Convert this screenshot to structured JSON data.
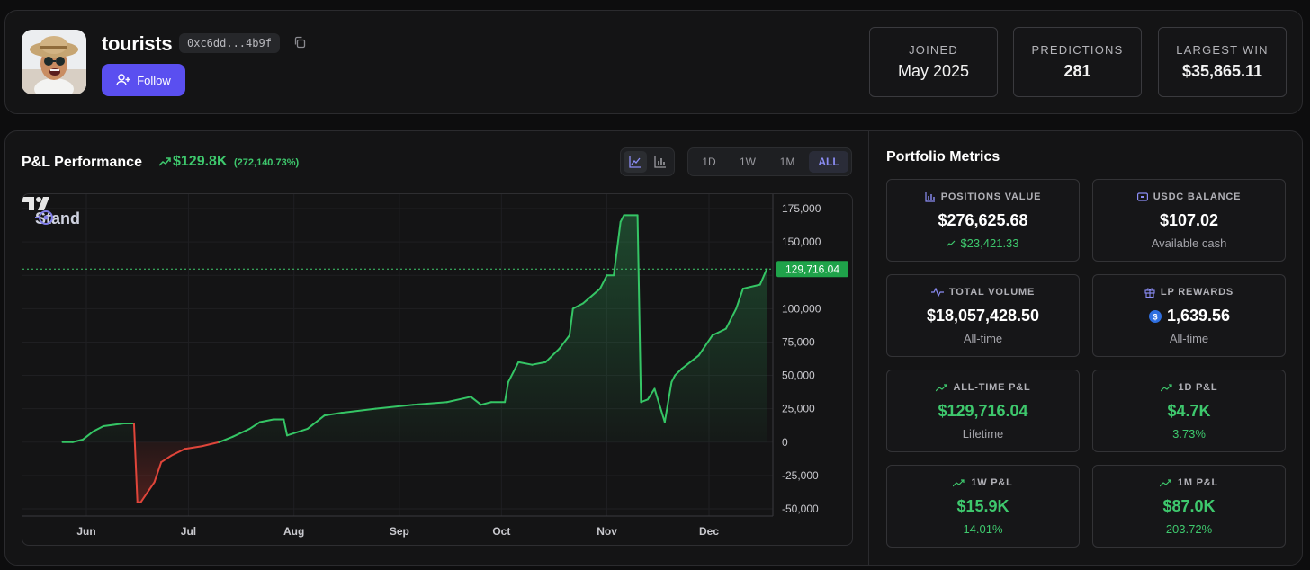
{
  "profile": {
    "username": "tourists",
    "address": "0xc6dd...4b9f",
    "follow_label": "Follow"
  },
  "stats": [
    {
      "label": "JOINED",
      "value": "May 2025"
    },
    {
      "label": "PREDICTIONS",
      "value": "281"
    },
    {
      "label": "LARGEST WIN",
      "value": "$35,865.11"
    }
  ],
  "pnl": {
    "title": "P&L Performance",
    "value": "$129.8K",
    "pct": "(272,140.73%)",
    "chart_types": [
      "line",
      "bar"
    ],
    "ranges": [
      "1D",
      "1W",
      "1M",
      "ALL"
    ],
    "active_range": "ALL"
  },
  "chart_data": {
    "type": "area",
    "watermark": "Stand",
    "x_ticks": [
      "Jun",
      "Jul",
      "Aug",
      "Sep",
      "Oct",
      "Nov",
      "Dec"
    ],
    "y_ticks": [
      "175,000",
      "150,000",
      "125,000",
      "100,000",
      "75,000",
      "50,000",
      "25,000",
      "0",
      "-25,000",
      "-50,000"
    ],
    "ylim": [
      -55000,
      180000
    ],
    "last_value_label": "129,716.04",
    "last_value": 129716.04,
    "series": [
      {
        "x": [
          "2025-05-25",
          "2025-05-28",
          "2025-05-31",
          "2025-06-03",
          "2025-06-06",
          "2025-06-09",
          "2025-06-12",
          "2025-06-15",
          "2025-06-16",
          "2025-06-17",
          "2025-06-21",
          "2025-06-23",
          "2025-06-26",
          "2025-06-30",
          "2025-07-05",
          "2025-07-10",
          "2025-07-14",
          "2025-07-19",
          "2025-07-22",
          "2025-07-26",
          "2025-07-29",
          "2025-07-30",
          "2025-08-05",
          "2025-08-10",
          "2025-08-15",
          "2025-08-25",
          "2025-09-05",
          "2025-09-15",
          "2025-09-22",
          "2025-09-25",
          "2025-09-28",
          "2025-10-02",
          "2025-10-03",
          "2025-10-06",
          "2025-10-10",
          "2025-10-14",
          "2025-10-18",
          "2025-10-21",
          "2025-10-22",
          "2025-10-25",
          "2025-10-30",
          "2025-11-01",
          "2025-11-03",
          "2025-11-05",
          "2025-11-06",
          "2025-11-10",
          "2025-11-11",
          "2025-11-13",
          "2025-11-15",
          "2025-11-18",
          "2025-11-20",
          "2025-11-21",
          "2025-11-23",
          "2025-11-28",
          "2025-12-02",
          "2025-12-06",
          "2025-12-09",
          "2025-12-11",
          "2025-12-16",
          "2025-12-18"
        ],
        "values": [
          0,
          0,
          2000,
          8000,
          12000,
          13000,
          14000,
          14000,
          -45000,
          -45000,
          -30000,
          -15000,
          -10000,
          -5000,
          -3000,
          0,
          4000,
          10000,
          15000,
          17000,
          17000,
          5000,
          10000,
          20000,
          22000,
          25000,
          28000,
          30000,
          34000,
          28000,
          30000,
          30000,
          45000,
          60000,
          58000,
          60000,
          70000,
          80000,
          100000,
          104000,
          115000,
          125000,
          125000,
          165000,
          170000,
          170000,
          30000,
          32000,
          40000,
          15000,
          45000,
          50000,
          55000,
          65000,
          80000,
          85000,
          100000,
          115000,
          118000,
          129716
        ]
      }
    ]
  },
  "metrics": {
    "title": "Portfolio Metrics",
    "cards": [
      {
        "label": "POSITIONS VALUE",
        "value": "$276,625.68",
        "sub": "$23,421.33",
        "icon": "bar-chart-icon"
      },
      {
        "label": "USDC BALANCE",
        "value": "$107.02",
        "sub": "Available cash",
        "icon": "wallet-icon"
      },
      {
        "label": "TOTAL VOLUME",
        "value": "$18,057,428.50",
        "sub": "All-time",
        "icon": "activity-icon"
      },
      {
        "label": "LP REWARDS",
        "value": "1,639.56",
        "sub": "All-time",
        "icon": "gift-icon"
      },
      {
        "label": "ALL-TIME P&L",
        "value": "$129,716.04",
        "sub": "Lifetime",
        "icon": "trending-up-icon"
      },
      {
        "label": "1D P&L",
        "value": "$4.7K",
        "sub": "3.73%",
        "icon": "trending-up-icon"
      },
      {
        "label": "1W P&L",
        "value": "$15.9K",
        "sub": "14.01%",
        "icon": "trending-up-icon"
      },
      {
        "label": "1M P&L",
        "value": "$87.0K",
        "sub": "203.72%",
        "icon": "trending-up-icon"
      }
    ]
  },
  "colors": {
    "accent": "#5a4ff0",
    "positive": "#3ec86d",
    "negative": "#e0453a",
    "active_range": "#8b8df5"
  }
}
